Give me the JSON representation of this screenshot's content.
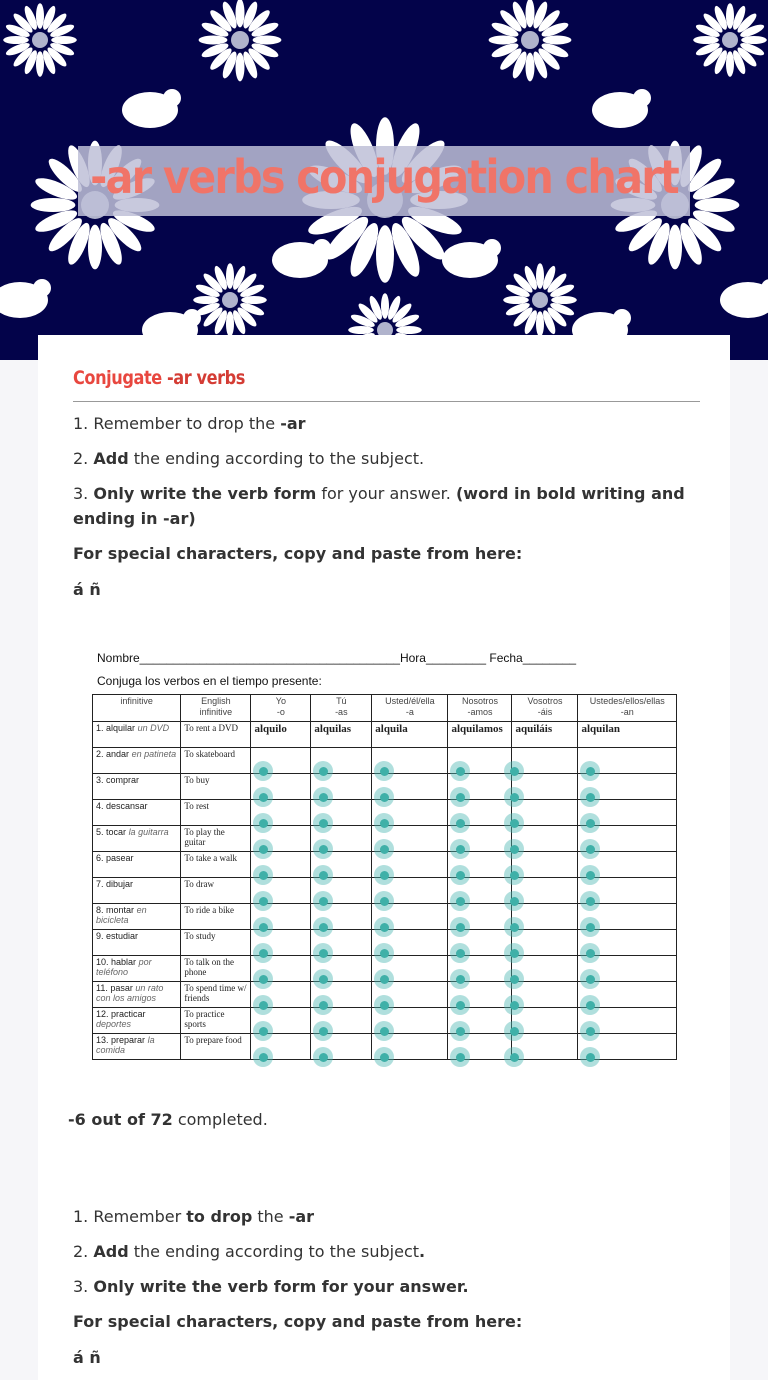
{
  "header": {
    "title": "-ar verbs conjugation chart"
  },
  "section": {
    "title_pre": "Conjugate ",
    "title_bold": "-ar verbs"
  },
  "instructions1": [
    {
      "pre": "1. Remember to drop the ",
      "b1": "-ar",
      "mid": "",
      "b2": "",
      "post": ""
    },
    {
      "pre": "2. ",
      "b1": "Add",
      "mid": " the ending according to the subject.",
      "b2": "",
      "post": ""
    },
    {
      "pre": "3. ",
      "b1": "Only write the verb form",
      "mid": " for your answer. ",
      "b2": "(word in bold writing and ending in -ar)",
      "post": ""
    }
  ],
  "special1": "For special characters, copy and paste from here:",
  "chars1": "á ñ",
  "worksheet": {
    "nombre": "Nombre_______________________________________Hora_________ Fecha________",
    "instruction": "Conjuga los verbos en el tiempo presente:",
    "headers": [
      "infinitive",
      "English infinitive",
      "Yo\n-o",
      "Tú\n-as",
      "Usted/él/ella\n-a",
      "Nosotros\n-amos",
      "Vosotros\n-áis",
      "Ustedes/ellos/ellas\n-an"
    ],
    "example": {
      "num": "1.",
      "verb": "alquilar",
      "extra": "un DVD",
      "english": "To rent a DVD",
      "answers": [
        "alquilo",
        "alquilas",
        "alquila",
        "alquilamos",
        "aquiláis",
        "alquilan"
      ]
    },
    "rows": [
      {
        "num": "2.",
        "verb": "andar",
        "extra": "en patineta",
        "english": "To skateboard"
      },
      {
        "num": "3.",
        "verb": "comprar",
        "extra": "",
        "english": "To buy"
      },
      {
        "num": "4.",
        "verb": "descansar",
        "extra": "",
        "english": "To rest"
      },
      {
        "num": "5.",
        "verb": "tocar",
        "extra": "la guitarra",
        "english": "To play the guitar"
      },
      {
        "num": "6.",
        "verb": "pasear",
        "extra": "",
        "english": "To take a walk"
      },
      {
        "num": "7.",
        "verb": "dibujar",
        "extra": "",
        "english": "To draw"
      },
      {
        "num": "8.",
        "verb": "montar",
        "extra": "en bicicleta",
        "english": "To ride a bike"
      },
      {
        "num": "9.",
        "verb": "estudiar",
        "extra": "",
        "english": "To study"
      },
      {
        "num": "10.",
        "verb": "hablar",
        "extra": "por teléfono",
        "english": "To talk on the phone"
      },
      {
        "num": "11.",
        "verb": "pasar",
        "extra": "un rato con los amigos",
        "english": "To spend time w/ friends"
      },
      {
        "num": "12.",
        "verb": "practicar",
        "extra": "deportes",
        "english": "To practice sports"
      },
      {
        "num": "13.",
        "verb": "preparar",
        "extra": "la comida",
        "english": "To prepare food"
      }
    ]
  },
  "score": {
    "bold": "-6 out of 72",
    "rest": " completed."
  },
  "instructions2": [
    {
      "pre": "1. Remember ",
      "b1": "to drop",
      "mid": " the ",
      "b2": "-ar",
      "post": ""
    },
    {
      "pre": "2. ",
      "b1": "Add",
      "mid": " the ending according to the subject",
      "b2": ".",
      "post": ""
    },
    {
      "pre": "3. ",
      "b1": "Only write the verb form for your answer.",
      "mid": "",
      "b2": "",
      "post": ""
    }
  ],
  "special2": "For special characters, copy and paste from here:",
  "chars2": "á ñ",
  "colors": {
    "banner": "#03034a",
    "title": "#f07468",
    "accent": "#e8473f",
    "input_dot": "#3fb0a8"
  }
}
